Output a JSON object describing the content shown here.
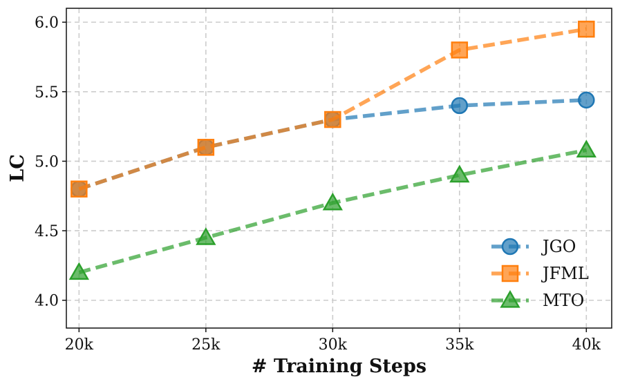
{
  "chart_data": {
    "type": "line",
    "title": "",
    "xlabel": "# Training Steps",
    "ylabel": "LC",
    "x": [
      20000,
      25000,
      30000,
      35000,
      40000
    ],
    "x_tick_labels": [
      "20k",
      "25k",
      "30k",
      "35k",
      "40k"
    ],
    "y_ticks": [
      "4.0",
      "4.5",
      "5.0",
      "5.5",
      "6.0"
    ],
    "xlim": [
      19500,
      41000
    ],
    "ylim": [
      3.8,
      6.1
    ],
    "grid": true,
    "legend_position": "lower-right",
    "series": [
      {
        "name": "JGO",
        "values": [
          4.8,
          5.1,
          5.3,
          5.4,
          5.44
        ],
        "color": "#1f77b4",
        "marker": "circle",
        "line_style": "dashed"
      },
      {
        "name": "JFML",
        "values": [
          4.8,
          5.1,
          5.3,
          5.8,
          5.95
        ],
        "color": "#ff7f0e",
        "marker": "square",
        "line_style": "dashed"
      },
      {
        "name": "MTO",
        "values": [
          4.2,
          4.45,
          4.7,
          4.9,
          5.08
        ],
        "color": "#2ca02c",
        "marker": "triangle",
        "line_style": "dashed"
      }
    ]
  }
}
